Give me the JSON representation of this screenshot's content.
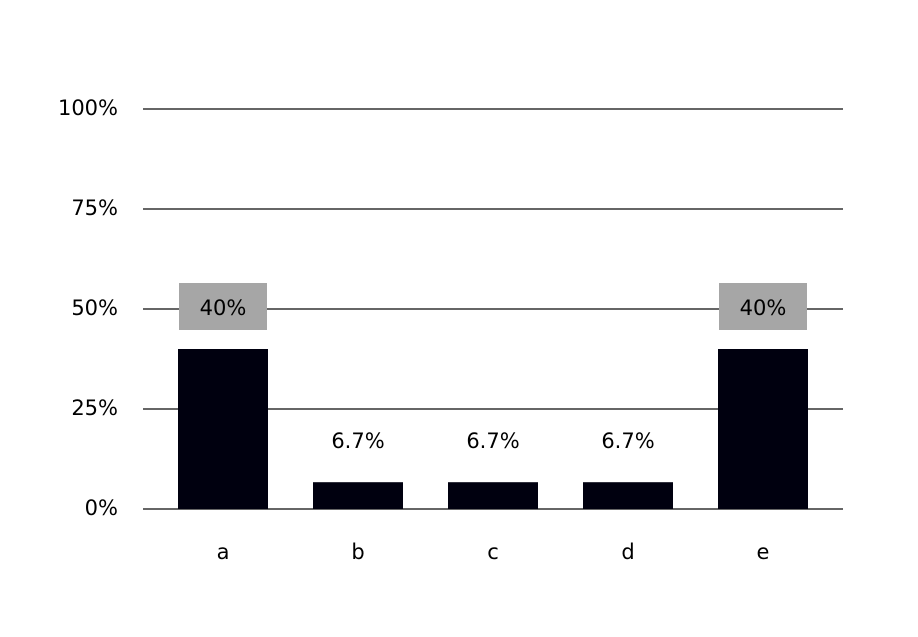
{
  "chart_data": {
    "type": "bar",
    "categories": [
      "a",
      "b",
      "c",
      "d",
      "e"
    ],
    "values": [
      40,
      6.7,
      6.7,
      6.7,
      40
    ],
    "value_labels": [
      "40%",
      "6.7%",
      "6.7%",
      "6.7%",
      "40%"
    ],
    "color": "#00000f",
    "ylim": [
      0,
      100
    ],
    "yticks": [
      {
        "value": 0,
        "label": "0%"
      },
      {
        "value": 25,
        "label": "25%"
      },
      {
        "value": 50,
        "label": "50%"
      },
      {
        "value": 75,
        "label": "75%"
      },
      {
        "value": 100,
        "label": "100%"
      }
    ],
    "grid": true
  }
}
